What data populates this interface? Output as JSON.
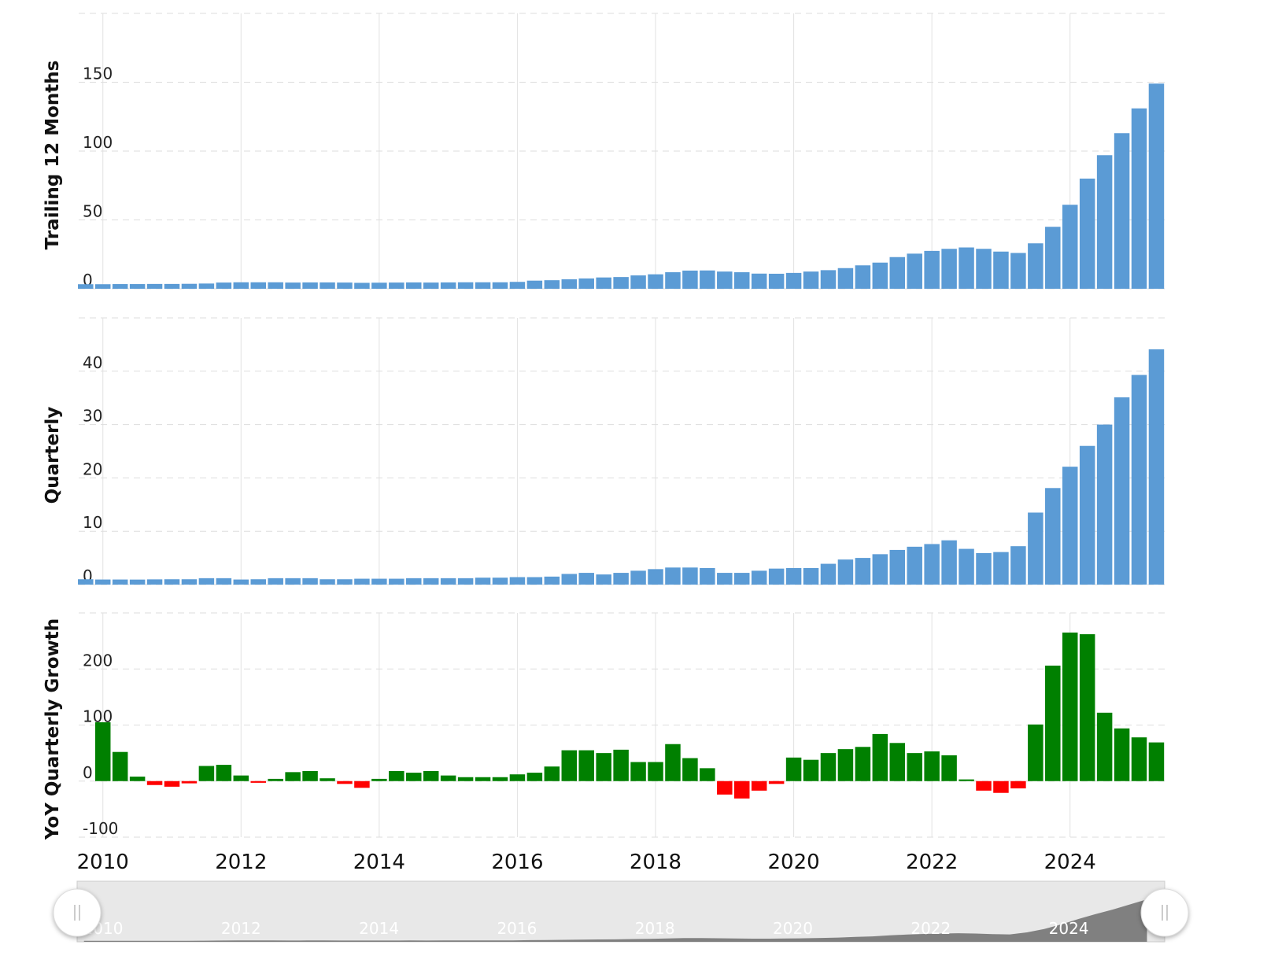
{
  "chart_data": [
    {
      "type": "bar",
      "y_label": "Trailing 12 Months",
      "color": "#5b9bd5",
      "x": [
        2009.75,
        2010,
        2010.25,
        2010.5,
        2010.75,
        2011,
        2011.25,
        2011.5,
        2011.75,
        2012,
        2012.25,
        2012.5,
        2012.75,
        2013,
        2013.25,
        2013.5,
        2013.75,
        2014,
        2014.25,
        2014.5,
        2014.75,
        2015,
        2015.25,
        2015.5,
        2015.75,
        2016,
        2016.25,
        2016.5,
        2016.75,
        2017,
        2017.25,
        2017.5,
        2017.75,
        2018,
        2018.25,
        2018.5,
        2018.75,
        2019,
        2019.25,
        2019.5,
        2019.75,
        2020,
        2020.25,
        2020.5,
        2020.75,
        2021,
        2021.25,
        2021.5,
        2021.75,
        2022,
        2022.25,
        2022.5,
        2022.75,
        2023,
        2023.25,
        2023.5,
        2023.75,
        2024,
        2024.25,
        2024.5,
        2024.75,
        2025,
        2025.25
      ],
      "values": [
        3.3,
        3.3,
        3.4,
        3.4,
        3.5,
        3.5,
        3.6,
        3.8,
        4.5,
        4.7,
        4.7,
        4.7,
        4.5,
        4.6,
        4.6,
        4.5,
        4.3,
        4.4,
        4.5,
        4.6,
        4.5,
        4.6,
        4.7,
        4.7,
        4.7,
        5.0,
        5.9,
        6.2,
        6.9,
        7.5,
        8.2,
        8.5,
        9.7,
        10.5,
        12.0,
        13.2,
        13.3,
        12.5,
        12.0,
        11.0,
        10.9,
        11.5,
        12.5,
        13.5,
        15.0,
        17,
        19,
        23,
        25.5,
        27.5,
        29,
        30,
        29,
        27,
        26,
        33,
        45,
        61,
        80,
        97,
        113,
        131,
        149
      ],
      "xlim": [
        2009.65,
        2025.37
      ],
      "xticks": [
        2010,
        2012,
        2014,
        2016,
        2018,
        2020,
        2022,
        2024
      ],
      "ylim": [
        0,
        200
      ],
      "yticks": [
        0,
        50,
        100,
        150
      ],
      "grid": true
    },
    {
      "type": "bar",
      "y_label": "Quarterly",
      "color": "#5b9bd5",
      "x": [
        2009.75,
        2010,
        2010.25,
        2010.5,
        2010.75,
        2011,
        2011.25,
        2011.5,
        2011.75,
        2012,
        2012.25,
        2012.5,
        2012.75,
        2013,
        2013.25,
        2013.5,
        2013.75,
        2014,
        2014.25,
        2014.5,
        2014.75,
        2015,
        2015.25,
        2015.5,
        2015.75,
        2016,
        2016.25,
        2016.5,
        2016.75,
        2017,
        2017.25,
        2017.5,
        2017.75,
        2018,
        2018.25,
        2018.5,
        2018.75,
        2019,
        2019.25,
        2019.5,
        2019.75,
        2020,
        2020.25,
        2020.5,
        2020.75,
        2021,
        2021.25,
        2021.5,
        2021.75,
        2022,
        2022.25,
        2022.5,
        2022.75,
        2023,
        2023.25,
        2023.5,
        2023.75,
        2024,
        2024.25,
        2024.5,
        2024.75,
        2025,
        2025.25
      ],
      "values": [
        1.0,
        0.95,
        0.95,
        0.94,
        0.98,
        1.0,
        1.0,
        1.2,
        1.2,
        0.95,
        1.0,
        1.2,
        1.2,
        1.2,
        1.0,
        1.0,
        1.1,
        1.1,
        1.1,
        1.2,
        1.2,
        1.2,
        1.2,
        1.3,
        1.3,
        1.4,
        1.4,
        1.5,
        2.0,
        2.2,
        1.9,
        2.2,
        2.6,
        2.9,
        3.2,
        3.2,
        3.1,
        2.2,
        2.2,
        2.6,
        3.0,
        3.1,
        3.1,
        3.9,
        4.7,
        5.0,
        5.7,
        6.5,
        7.1,
        7.6,
        8.3,
        6.7,
        5.9,
        6.1,
        7.2,
        13.5,
        18.1,
        22.1,
        26.0,
        30.0,
        35.1,
        39.3,
        44.1
      ],
      "xlim": [
        2009.65,
        2025.37
      ],
      "xticks": [
        2010,
        2012,
        2014,
        2016,
        2018,
        2020,
        2022,
        2024
      ],
      "ylim": [
        0,
        50
      ],
      "yticks": [
        0,
        10,
        20,
        30,
        40
      ],
      "grid": true
    },
    {
      "type": "bar",
      "y_label": "YoY Quarterly Growth",
      "color": "#008000",
      "negative_color": "#ff0000",
      "x": [
        2009.75,
        2010,
        2010.25,
        2010.5,
        2010.75,
        2011,
        2011.25,
        2011.5,
        2011.75,
        2012,
        2012.25,
        2012.5,
        2012.75,
        2013,
        2013.25,
        2013.5,
        2013.75,
        2014,
        2014.25,
        2014.5,
        2014.75,
        2015,
        2015.25,
        2015.5,
        2015.75,
        2016,
        2016.25,
        2016.5,
        2016.75,
        2017,
        2017.25,
        2017.5,
        2017.75,
        2018,
        2018.25,
        2018.5,
        2018.75,
        2019,
        2019.25,
        2019.5,
        2019.75,
        2020,
        2020.25,
        2020.5,
        2020.75,
        2021,
        2021.25,
        2021.5,
        2021.75,
        2022,
        2022.25,
        2022.5,
        2022.75,
        2023,
        2023.25,
        2023.5,
        2023.75,
        2024,
        2024.25,
        2024.5,
        2024.75,
        2025,
        2025.25
      ],
      "values": [
        null,
        105,
        52,
        8,
        -7,
        -10,
        -4,
        27,
        29,
        10,
        -3,
        4,
        16,
        18,
        5,
        -5,
        -12,
        4,
        18,
        15,
        18,
        10,
        7,
        7,
        7,
        12,
        15,
        26,
        55,
        55,
        50,
        56,
        34,
        34,
        66,
        41,
        23,
        -24,
        -31,
        -17,
        -5,
        42,
        38,
        50,
        57,
        61,
        84,
        68,
        50,
        53,
        46,
        3,
        -17,
        -21,
        -13,
        101,
        206,
        265,
        262,
        122,
        94,
        78,
        69
      ],
      "xlim": [
        2009.65,
        2025.37
      ],
      "xticks": [
        2010,
        2012,
        2014,
        2016,
        2018,
        2020,
        2022,
        2024
      ],
      "ylim": [
        -100,
        300
      ],
      "yticks": [
        -100,
        0,
        100,
        200
      ],
      "grid": true
    }
  ]
}
